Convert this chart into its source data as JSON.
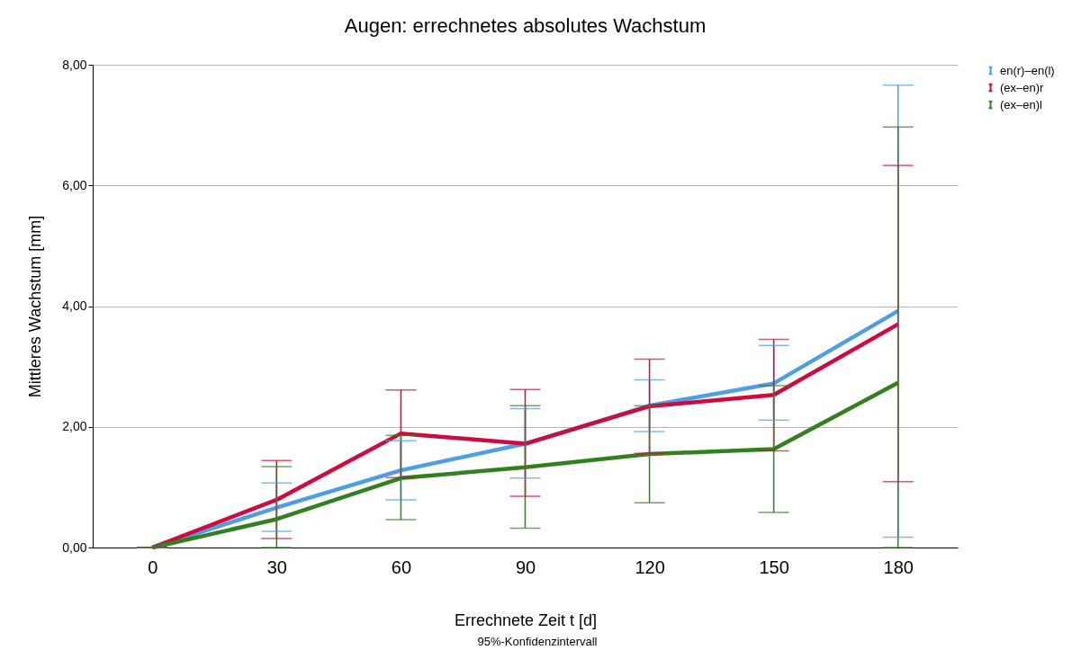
{
  "chart_data": {
    "type": "line",
    "title": "Augen: errechnetes absolutes Wachstum",
    "xlabel": "Errechnete Zeit t [d]",
    "ylabel": "Mittleres Wachstum [mm]",
    "annotations": [
      "95%-Konfidenzintervall"
    ],
    "categories": [
      "0",
      "30",
      "60",
      "90",
      "120",
      "150",
      "180"
    ],
    "series": [
      {
        "name": "en(r)–en(l)",
        "color": "#4e9de6",
        "values": [
          0,
          0.66,
          1.28,
          1.72,
          2.35,
          2.72,
          3.92
        ],
        "errors": [
          [
            0,
            0
          ],
          [
            0.27,
            1.07
          ],
          [
            0.79,
            1.77
          ],
          [
            1.15,
            2.3
          ],
          [
            1.92,
            2.78
          ],
          [
            2.11,
            3.35
          ],
          [
            0.17,
            7.66
          ]
        ]
      },
      {
        "name": "(ex–en)r",
        "color": "#cf0a3c",
        "values": [
          0,
          0.79,
          1.89,
          1.72,
          2.34,
          2.53,
          3.7
        ],
        "errors": [
          [
            0,
            0
          ],
          [
            0.15,
            1.44
          ],
          [
            1.16,
            2.61
          ],
          [
            0.85,
            2.62
          ],
          [
            1.56,
            3.12
          ],
          [
            1.6,
            3.45
          ],
          [
            1.09,
            6.33
          ]
        ]
      },
      {
        "name": "(ex–en)l",
        "color": "#31821e",
        "values": [
          0,
          0.47,
          1.15,
          1.33,
          1.55,
          1.63,
          2.73
        ],
        "errors": [
          [
            0,
            0
          ],
          [
            0,
            1.34
          ],
          [
            0.46,
            1.86
          ],
          [
            0.32,
            2.35
          ],
          [
            0.74,
            2.35
          ],
          [
            0.58,
            2.68
          ],
          [
            0,
            6.97
          ]
        ]
      }
    ],
    "ylim": [
      0,
      8
    ],
    "yticks": [
      {
        "value": 0,
        "label": "0,00"
      },
      {
        "value": 2,
        "label": "2,00"
      },
      {
        "value": 4,
        "label": "4,00"
      },
      {
        "value": 6,
        "label": "6,00"
      },
      {
        "value": 8,
        "label": "8,00"
      }
    ],
    "grid": "y",
    "legend": "top right"
  }
}
